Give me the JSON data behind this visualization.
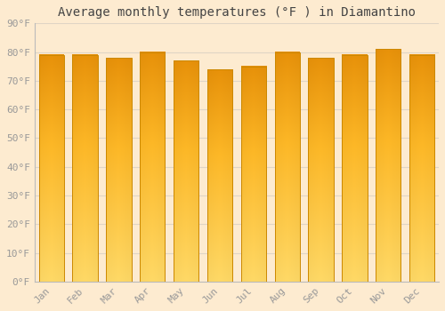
{
  "title": "Average monthly temperatures (°F ) in Diamantino",
  "months": [
    "Jan",
    "Feb",
    "Mar",
    "Apr",
    "May",
    "Jun",
    "Jul",
    "Aug",
    "Sep",
    "Oct",
    "Nov",
    "Dec"
  ],
  "values": [
    79,
    79,
    78,
    80,
    77,
    74,
    75,
    80,
    78,
    79,
    81,
    79
  ],
  "bar_color_top": "#E8920A",
  "bar_color_mid": "#FDB827",
  "bar_color_bottom": "#FFD966",
  "bar_edge_color": "#CC8800",
  "background_color": "#FDEBD0",
  "plot_bg_color": "#FDEBD0",
  "grid_color": "#E0D5C5",
  "tick_color": "#999999",
  "title_fontsize": 10,
  "tick_fontsize": 8,
  "ylim": [
    0,
    90
  ],
  "yticks": [
    0,
    10,
    20,
    30,
    40,
    50,
    60,
    70,
    80,
    90
  ],
  "ytick_labels": [
    "0°F",
    "10°F",
    "20°F",
    "30°F",
    "40°F",
    "50°F",
    "60°F",
    "70°F",
    "80°F",
    "90°F"
  ]
}
